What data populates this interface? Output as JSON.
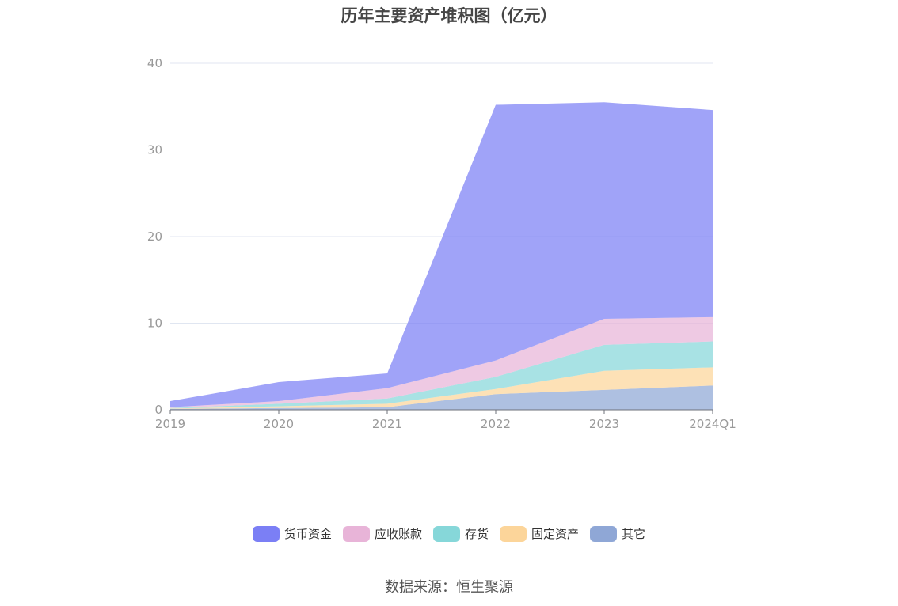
{
  "chart_data": {
    "type": "area",
    "stacked": true,
    "title": "历年主要资产堆积图（亿元）",
    "categories": [
      "2019",
      "2020",
      "2021",
      "2022",
      "2023",
      "2024Q1"
    ],
    "ylim": [
      0,
      40
    ],
    "yticks": [
      0,
      10,
      20,
      30,
      40
    ],
    "grid": true,
    "legend_position": "bottom",
    "series": [
      {
        "name": "其它",
        "color": "#8fa7d6",
        "values": [
          0.1,
          0.2,
          0.3,
          1.8,
          2.3,
          2.8
        ]
      },
      {
        "name": "固定资产",
        "color": "#fcd59a",
        "values": [
          0.05,
          0.2,
          0.4,
          0.6,
          2.2,
          2.1
        ]
      },
      {
        "name": "存货",
        "color": "#86d7d9",
        "values": [
          0.05,
          0.3,
          0.6,
          1.4,
          3.0,
          3.0
        ]
      },
      {
        "name": "应收账款",
        "color": "#e8b4d8",
        "values": [
          0.1,
          0.3,
          1.2,
          1.9,
          3.0,
          2.8
        ]
      },
      {
        "name": "货币资金",
        "color": "#7b7ff5",
        "values": [
          0.7,
          2.2,
          1.7,
          29.5,
          25.0,
          23.9
        ]
      }
    ]
  },
  "legend": {
    "items": [
      {
        "label": "货币资金",
        "color": "#7b7ff5"
      },
      {
        "label": "应收账款",
        "color": "#e8b4d8"
      },
      {
        "label": "存货",
        "color": "#86d7d9"
      },
      {
        "label": "固定资产",
        "color": "#fcd59a"
      },
      {
        "label": "其它",
        "color": "#8fa7d6"
      }
    ]
  },
  "source": "数据来源：恒生聚源"
}
